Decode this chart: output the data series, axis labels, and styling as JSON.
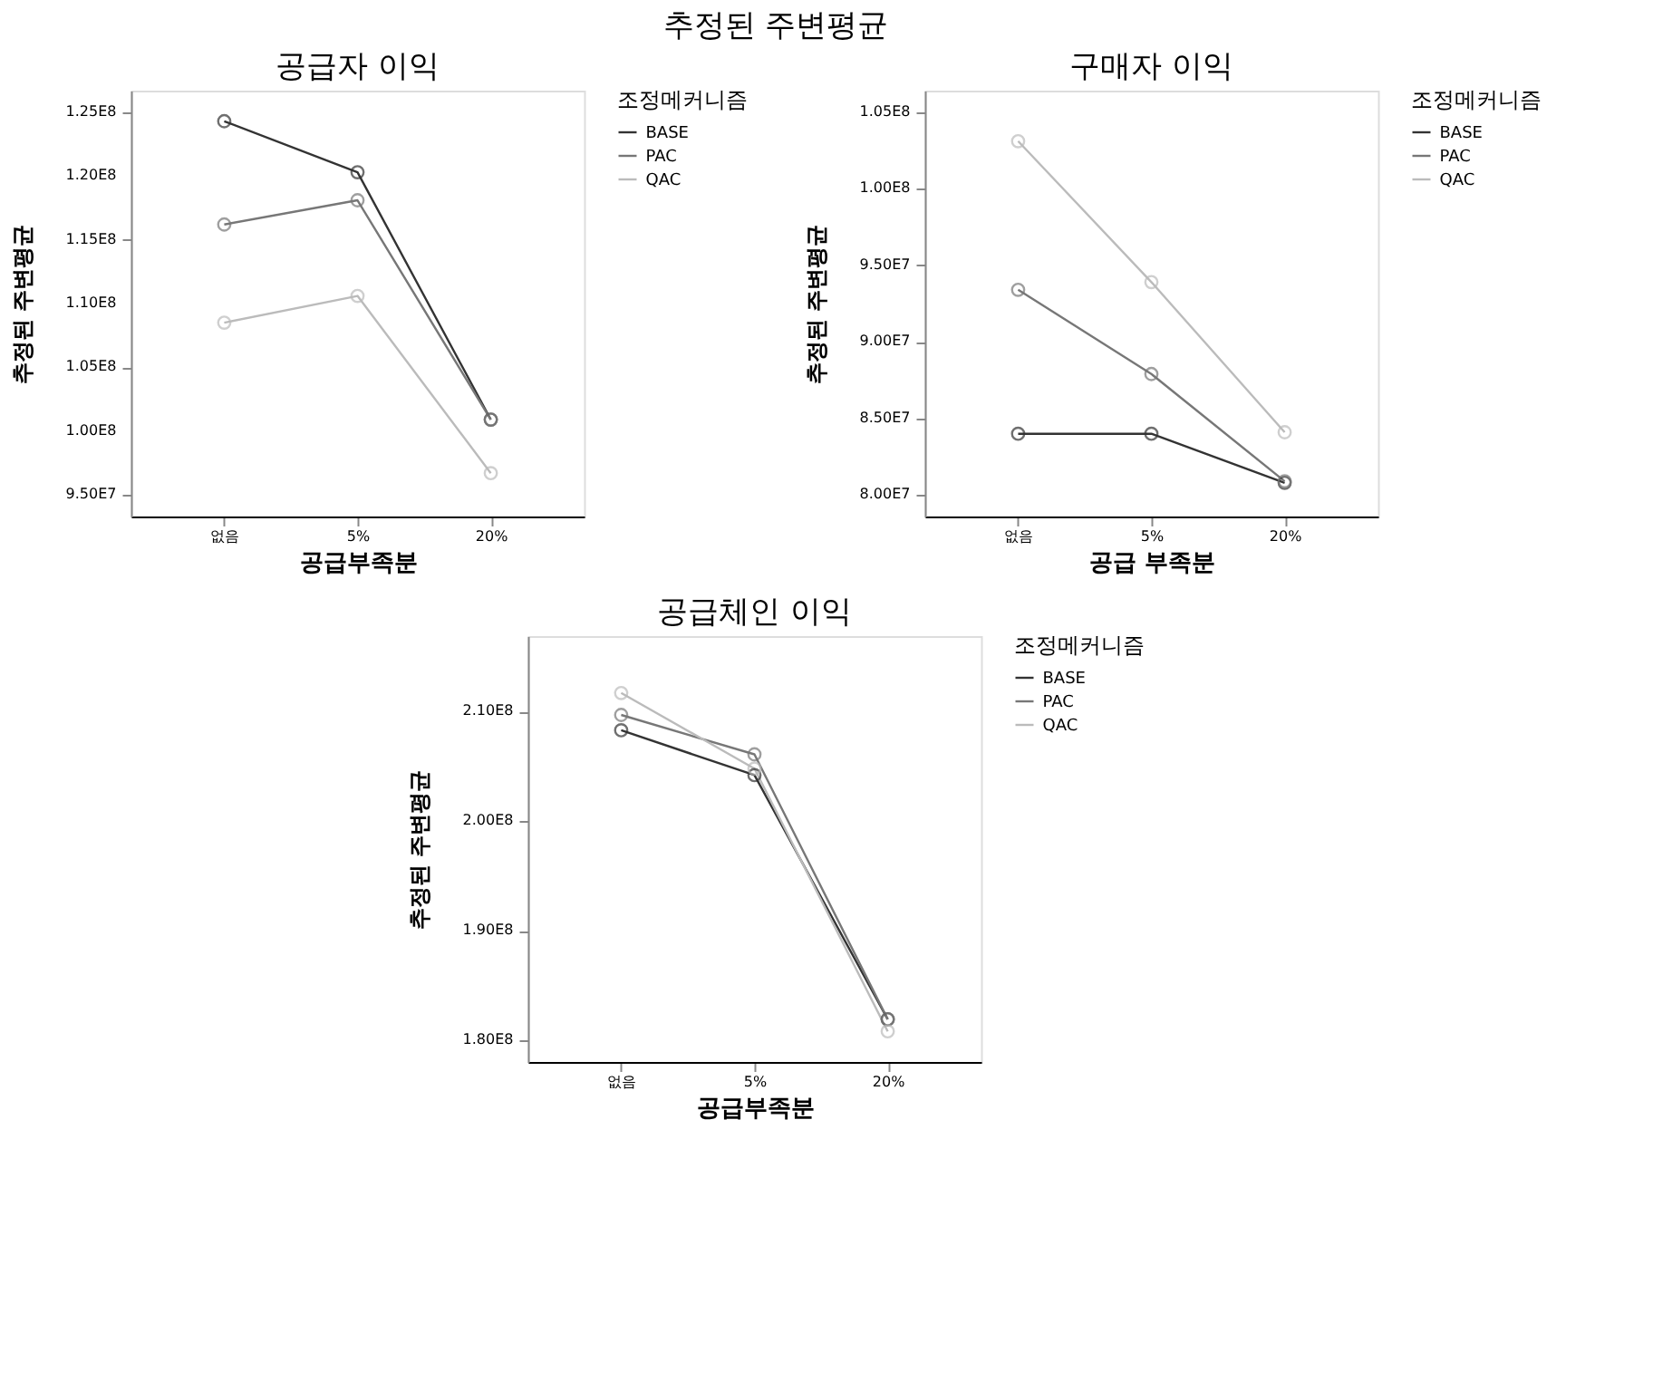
{
  "chart_data": [
    {
      "type": "line",
      "title": "공급자 이익",
      "xlabel": "공급부족분",
      "ylabel": "추정된 주변평균",
      "legend_title": "조정메커니즘",
      "legend": "top right",
      "grid": false,
      "marker": "circle",
      "line_style": "solid",
      "annotations": [
        "추정된 주변평균"
      ],
      "categories": [
        "없음",
        "5%",
        "20%"
      ],
      "ylim": [
        93300000,
        126700000
      ],
      "yticks": [
        {
          "value": 95000000,
          "label": "9.50E7"
        },
        {
          "value": 100000000,
          "label": "1.00E8"
        },
        {
          "value": 105000000,
          "label": "1.05E8"
        },
        {
          "value": 110000000,
          "label": "1.10E8"
        },
        {
          "value": 115000000,
          "label": "1.15E8"
        },
        {
          "value": 120000000,
          "label": "1.20E8"
        },
        {
          "value": 125000000,
          "label": "1.25E8"
        }
      ],
      "series": [
        {
          "name": "BASE",
          "color": "#333333",
          "values": [
            124300000,
            120300000,
            100900000
          ]
        },
        {
          "name": "PAC",
          "color": "#777777",
          "values": [
            116200000,
            118100000,
            100900000
          ]
        },
        {
          "name": "QAC",
          "color": "#bbbbbb",
          "values": [
            108500000,
            110600000,
            96700000
          ]
        }
      ]
    },
    {
      "type": "line",
      "title": "구매자 이익",
      "xlabel": "공급 부족분",
      "ylabel": "추정된 주변평균",
      "legend_title": "조정메커니즘",
      "legend": "top right",
      "grid": false,
      "marker": "circle",
      "line_style": "solid",
      "categories": [
        "없음",
        "5%",
        "20%"
      ],
      "ylim": [
        78600000,
        106400000
      ],
      "yticks": [
        {
          "value": 80000000,
          "label": "8.00E7"
        },
        {
          "value": 85000000,
          "label": "8.50E7"
        },
        {
          "value": 90000000,
          "label": "9.00E7"
        },
        {
          "value": 95000000,
          "label": "9.50E7"
        },
        {
          "value": 100000000,
          "label": "1.00E8"
        },
        {
          "value": 105000000,
          "label": "1.05E8"
        }
      ],
      "series": [
        {
          "name": "BASE",
          "color": "#333333",
          "values": [
            84000000,
            84000000,
            80800000
          ]
        },
        {
          "name": "PAC",
          "color": "#777777",
          "values": [
            93400000,
            87900000,
            80900000
          ]
        },
        {
          "name": "QAC",
          "color": "#bbbbbb",
          "values": [
            103100000,
            93900000,
            84100000
          ]
        }
      ]
    },
    {
      "type": "line",
      "title": "공급체인 이익",
      "xlabel": "공급부족분",
      "ylabel": "추정된 주변평균",
      "legend_title": "조정메커니즘",
      "legend": "top right",
      "grid": false,
      "marker": "circle",
      "line_style": "solid",
      "categories": [
        "없음",
        "5%",
        "20%"
      ],
      "ylim": [
        178000000,
        216900000
      ],
      "yticks": [
        {
          "value": 180000000,
          "label": "1.80E8"
        },
        {
          "value": 190000000,
          "label": "1.90E8"
        },
        {
          "value": 200000000,
          "label": "2.00E8"
        },
        {
          "value": 210000000,
          "label": "2.10E8"
        }
      ],
      "series": [
        {
          "name": "BASE",
          "color": "#333333",
          "values": [
            208300000,
            204200000,
            181900000
          ]
        },
        {
          "name": "PAC",
          "color": "#777777",
          "values": [
            209700000,
            206100000,
            181900000
          ]
        },
        {
          "name": "QAC",
          "color": "#bbbbbb",
          "values": [
            211700000,
            204800000,
            180800000
          ]
        }
      ]
    }
  ]
}
